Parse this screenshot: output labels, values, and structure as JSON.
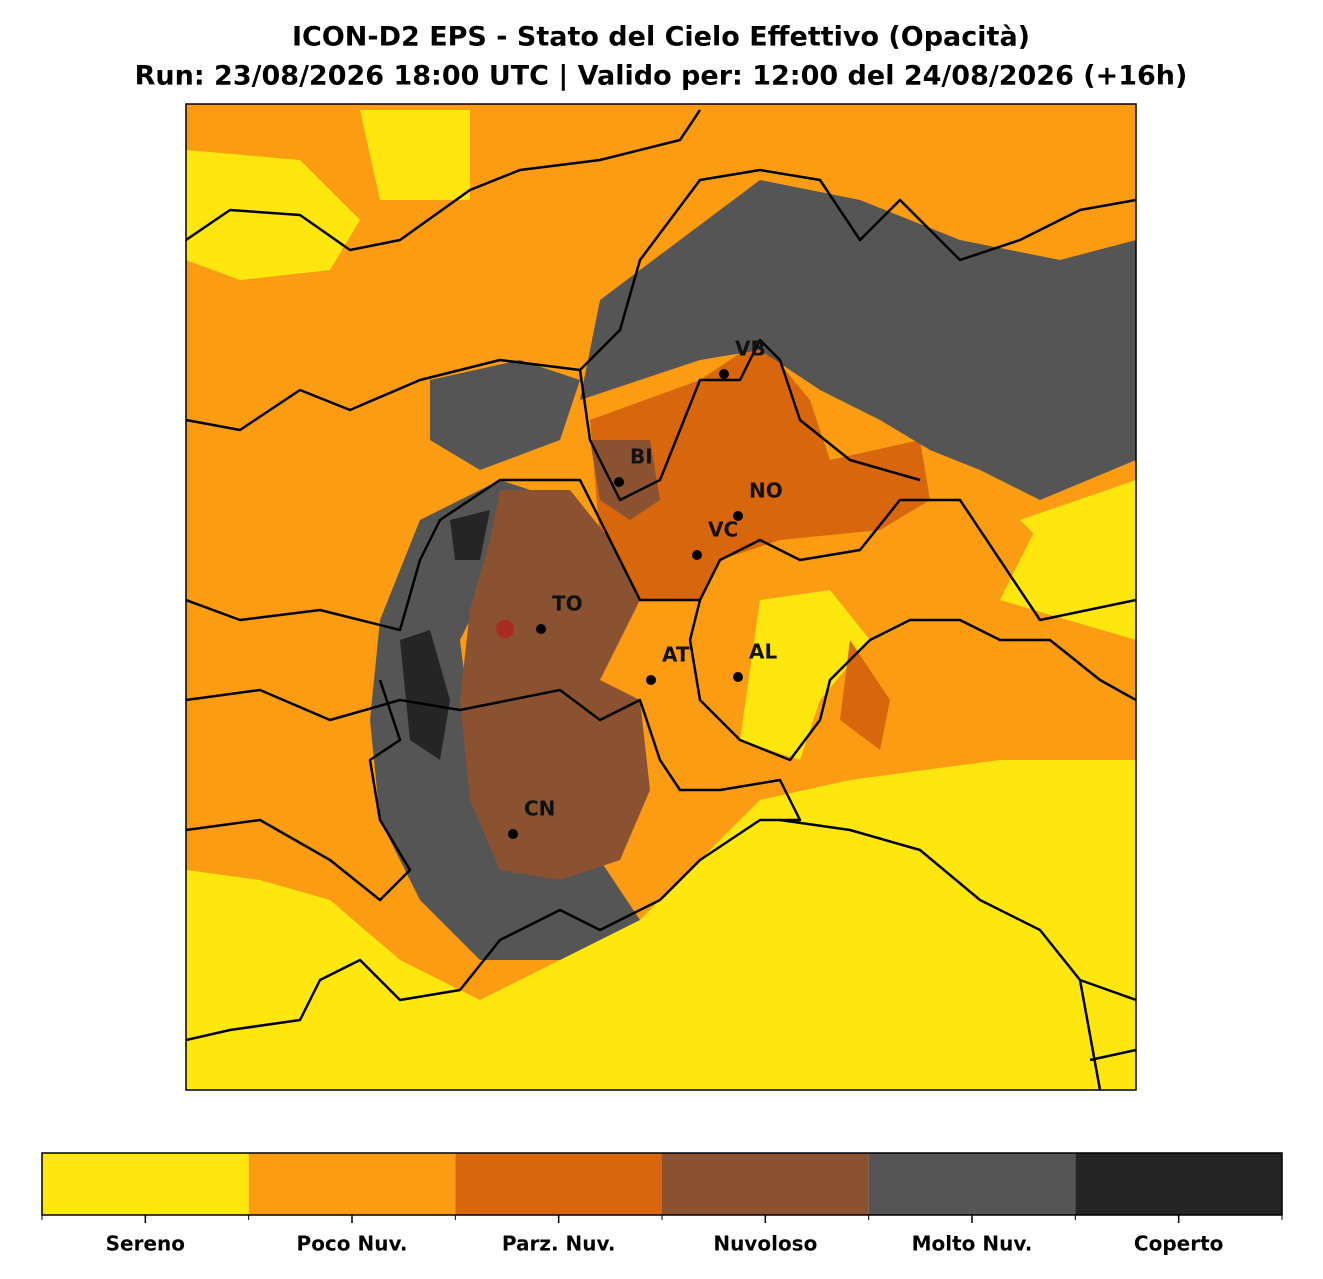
{
  "title": [
    "ICON-D2 EPS - Stato del Cielo Effettivo (Opacità)",
    "Run: 23/08/2026 18:00 UTC | Valido per: 12:00 del 24/08/2026 (+16h)"
  ],
  "cities": [
    "VB",
    "BI",
    "NO",
    "VC",
    "TO",
    "AT",
    "AL",
    "CN"
  ],
  "legend": [
    {
      "label": "Sereno",
      "color": "#fde70f"
    },
    {
      "label": "Poco Nuv.",
      "color": "#fb9c12"
    },
    {
      "label": "Parz. Nuv.",
      "color": "#d8660c"
    },
    {
      "label": "Nuvoloso",
      "color": "#8a5230"
    },
    {
      "label": "Molto Nuv.",
      "color": "#555555"
    },
    {
      "label": "Coperto",
      "color": "#252525"
    }
  ]
}
